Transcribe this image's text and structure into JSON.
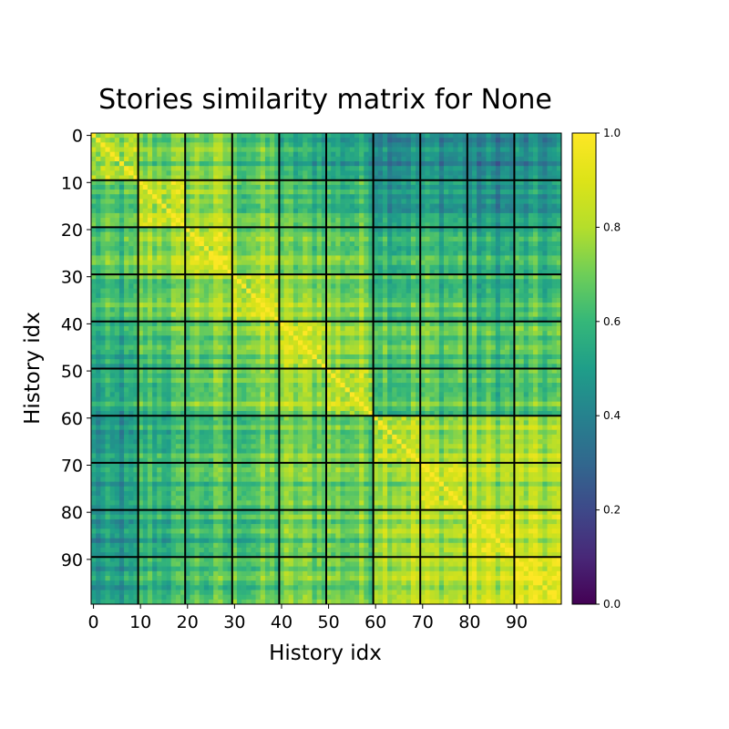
{
  "chart_data": {
    "type": "heatmap",
    "title": "Stories similarity matrix for None",
    "xlabel": "History idx",
    "ylabel": "History idx",
    "size": 100,
    "block_size": 10,
    "value_range": [
      0.0,
      1.0
    ],
    "colormap": "viridis",
    "x_ticks": [
      0,
      10,
      20,
      30,
      40,
      50,
      60,
      70,
      80,
      90
    ],
    "y_ticks": [
      0,
      10,
      20,
      30,
      40,
      50,
      60,
      70,
      80,
      90
    ],
    "colorbar_ticks": [
      "0.0",
      "0.2",
      "0.4",
      "0.6",
      "0.8",
      "1.0"
    ],
    "block_grid": [
      [
        0.72,
        0.68,
        0.7,
        0.62,
        0.52,
        0.5,
        0.42,
        0.42,
        0.38,
        0.4
      ],
      [
        0.62,
        0.8,
        0.76,
        0.68,
        0.62,
        0.6,
        0.5,
        0.5,
        0.45,
        0.47
      ],
      [
        0.63,
        0.75,
        0.83,
        0.74,
        0.68,
        0.68,
        0.6,
        0.6,
        0.55,
        0.57
      ],
      [
        0.6,
        0.7,
        0.75,
        0.83,
        0.75,
        0.72,
        0.64,
        0.64,
        0.58,
        0.6
      ],
      [
        0.52,
        0.63,
        0.67,
        0.73,
        0.81,
        0.75,
        0.68,
        0.66,
        0.62,
        0.64
      ],
      [
        0.52,
        0.62,
        0.68,
        0.72,
        0.76,
        0.8,
        0.66,
        0.66,
        0.62,
        0.64
      ],
      [
        0.48,
        0.6,
        0.65,
        0.68,
        0.72,
        0.72,
        0.84,
        0.78,
        0.8,
        0.8
      ],
      [
        0.48,
        0.6,
        0.64,
        0.67,
        0.7,
        0.7,
        0.78,
        0.83,
        0.78,
        0.78
      ],
      [
        0.45,
        0.56,
        0.6,
        0.62,
        0.68,
        0.68,
        0.8,
        0.78,
        0.86,
        0.82
      ],
      [
        0.46,
        0.58,
        0.62,
        0.64,
        0.68,
        0.68,
        0.8,
        0.78,
        0.83,
        0.86
      ]
    ]
  }
}
